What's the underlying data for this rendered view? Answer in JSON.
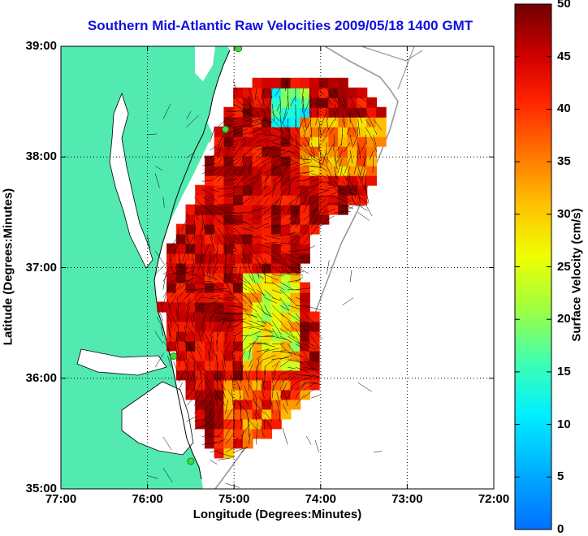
{
  "title": "Southern Mid-Atlantic Raw Velocities 2009/05/18 1400 GMT",
  "xlabel": "Longitude (Degrees:Minutes)",
  "ylabel": "Latitude (Degrees:Minutes)",
  "colorbar": {
    "label": "Surface Velocity (cm/s)",
    "ticks": [
      "0",
      "5",
      "10",
      "15",
      "20",
      "25",
      "30",
      "35",
      "40",
      "45",
      "50"
    ],
    "range": [
      0,
      50
    ]
  },
  "map": {
    "x_ticks": [
      "77:00",
      "76:00",
      "75:00",
      "74:00",
      "73:00",
      "72:00"
    ],
    "y_ticks": [
      "39:00",
      "38:00",
      "37:00",
      "36:00",
      "35:00"
    ],
    "lon_range": [
      -77,
      -72
    ],
    "lat_range": [
      35,
      39
    ],
    "grid": "dotted",
    "land_color": "#52eab0",
    "water_color": "#ffffff",
    "station_color": "#40dd40"
  },
  "stations": [
    {
      "lon": -74.95,
      "lat": 38.98
    },
    {
      "lon": -75.1,
      "lat": 38.25
    },
    {
      "lon": -75.7,
      "lat": 36.2
    },
    {
      "lon": -75.5,
      "lat": 35.25
    }
  ]
}
